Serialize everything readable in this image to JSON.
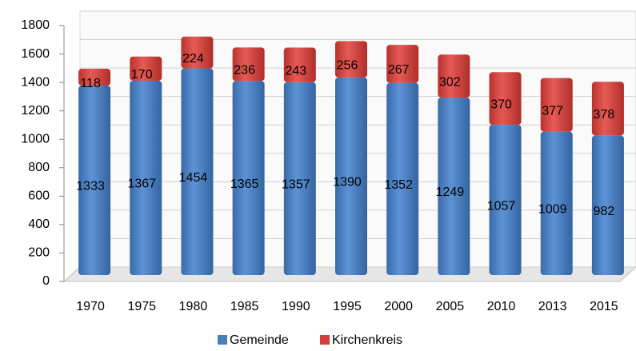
{
  "chart_data": {
    "type": "bar",
    "stacked": true,
    "categories": [
      "1970",
      "1975",
      "1980",
      "1985",
      "1990",
      "1995",
      "2000",
      "2005",
      "2010",
      "2013",
      "2015"
    ],
    "series": [
      {
        "name": "Gemeinde",
        "color": "#4a7ebb",
        "values": [
          1333,
          1367,
          1454,
          1365,
          1357,
          1390,
          1352,
          1249,
          1057,
          1009,
          982
        ]
      },
      {
        "name": "Kirchenkreis",
        "color": "#d43f3a",
        "values": [
          118,
          170,
          224,
          236,
          243,
          256,
          267,
          302,
          370,
          377,
          378
        ]
      }
    ],
    "ylim": [
      0,
      1800
    ],
    "yticks": [
      0,
      200,
      400,
      600,
      800,
      1000,
      1200,
      1400,
      1600,
      1800
    ],
    "grid": true
  }
}
